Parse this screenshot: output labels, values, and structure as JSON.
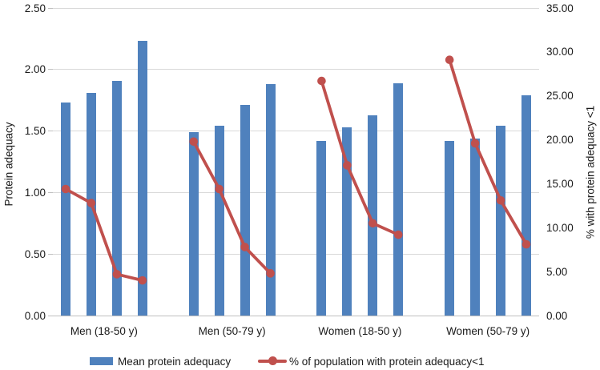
{
  "chart_data": {
    "type": "combo-bar-line",
    "title": "",
    "groups": [
      "Men (18-50 y)",
      "Men (50-79 y)",
      "Women (18-50 y)",
      "Women (50-79 y)"
    ],
    "bars_per_group": 4,
    "bar_series": {
      "name": "Mean protein adequacy",
      "axis": "left",
      "color": "#4F81BD",
      "values": [
        [
          1.73,
          1.81,
          1.91,
          2.23
        ],
        [
          1.49,
          1.54,
          1.71,
          1.88
        ],
        [
          1.42,
          1.53,
          1.63,
          1.89
        ],
        [
          1.42,
          1.44,
          1.54,
          1.79
        ]
      ]
    },
    "line_series": {
      "name": "% of population with protein adequacy<1",
      "axis": "right",
      "color": "#C0504D",
      "values": [
        [
          14.4,
          12.8,
          4.7,
          4.0
        ],
        [
          19.8,
          14.4,
          7.8,
          4.8
        ],
        [
          26.7,
          17.1,
          10.5,
          9.2
        ],
        [
          29.1,
          19.6,
          13.1,
          8.1
        ]
      ]
    },
    "left_axis": {
      "title": "Protein adequacy",
      "min": 0,
      "max": 2.5,
      "step": 0.5,
      "ticks": [
        "0.00",
        "0.50",
        "1.00",
        "1.50",
        "2.00",
        "2.50"
      ]
    },
    "right_axis": {
      "title": "% with protein adequacy <1",
      "min": 0,
      "max": 35,
      "step": 5,
      "ticks": [
        "0.00",
        "5.00",
        "10.00",
        "15.00",
        "20.00",
        "25.00",
        "30.00",
        "35.00"
      ]
    },
    "grid": true,
    "legend_position": "bottom",
    "colors": {
      "gridline": "#d9d9d9",
      "axis_line": "#bfbfbf",
      "text": "#1a1a1a"
    }
  }
}
